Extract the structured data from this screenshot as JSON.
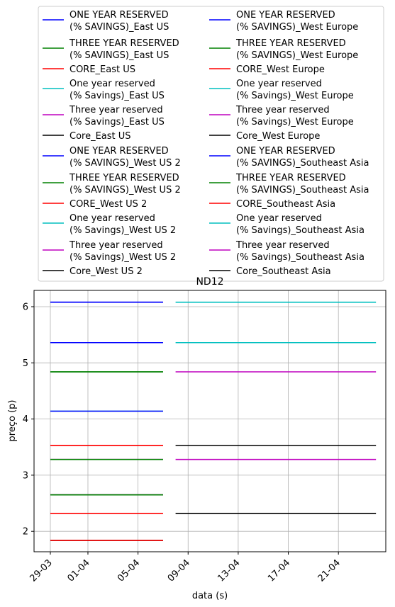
{
  "chart_data": {
    "type": "line",
    "title": "ND12",
    "xlabel": "data (s)",
    "ylabel": "preço (p)",
    "x_tick_labels": [
      "29-03",
      "01-04",
      "05-04",
      "09-04",
      "13-04",
      "17-04",
      "21-04"
    ],
    "y_tick_labels": [
      "2",
      "3",
      "4",
      "5",
      "6"
    ],
    "ylim": [
      1.62,
      6.3
    ],
    "grid": true,
    "legend_placement": "top, above plot, two columns",
    "series": [
      {
        "name": "ONE YEAR RESERVED\n(% SAVINGS)_East US",
        "color": "#0000ff",
        "x": [
          "29-03",
          "07-04"
        ],
        "y": [
          6.08,
          6.08
        ]
      },
      {
        "name": "THREE YEAR RESERVED\n(% SAVINGS)_East US",
        "color": "#008000",
        "x": [
          "29-03",
          "07-04"
        ],
        "y": [
          4.84,
          4.84
        ]
      },
      {
        "name": "CORE_East US",
        "color": "#ff0000",
        "x": [
          "29-03",
          "07-04"
        ],
        "y": [
          3.53,
          3.53
        ]
      },
      {
        "name": "One year reserved\n(% Savings)_East US",
        "color": "#00bfbf",
        "x": [
          "29-03",
          "07-04"
        ],
        "y": [
          5.36,
          5.36
        ]
      },
      {
        "name": "Three year reserved\n(% Savings)_East US",
        "color": "#bf00bf",
        "x": [
          "29-03",
          "07-04"
        ],
        "y": [
          3.28,
          3.28
        ]
      },
      {
        "name": "Core_East US",
        "color": "#000000",
        "x": [
          "29-03",
          "07-04"
        ],
        "y": [
          2.65,
          2.65
        ]
      },
      {
        "name": "ONE YEAR RESERVED\n(% SAVINGS)_West US 2",
        "color": "#0000ff",
        "x": [
          "29-03",
          "07-04"
        ],
        "y": [
          5.36,
          5.36
        ]
      },
      {
        "name": "THREE YEAR RESERVED\n(% SAVINGS)_West US 2",
        "color": "#008000",
        "x": [
          "29-03",
          "07-04"
        ],
        "y": [
          3.28,
          3.28
        ]
      },
      {
        "name": "CORE_West US 2",
        "color": "#ff0000",
        "x": [
          "29-03",
          "07-04"
        ],
        "y": [
          2.32,
          2.32
        ]
      },
      {
        "name": "One year reserved\n(% Savings)_West US 2",
        "color": "#00bfbf",
        "x": [
          "29-03",
          "07-04"
        ],
        "y": [
          4.14,
          4.14
        ]
      },
      {
        "name": "Three year reserved\n(% Savings)_West US 2",
        "color": "#bf00bf",
        "x": [
          "29-03",
          "07-04"
        ],
        "y": [
          2.65,
          2.65
        ]
      },
      {
        "name": "Core_West US 2",
        "color": "#000000",
        "x": [
          "29-03",
          "07-04"
        ],
        "y": [
          1.84,
          1.84
        ]
      },
      {
        "name": "ONE YEAR RESERVED\n(% SAVINGS)_West Europe",
        "color": "#0000ff",
        "x": [
          "29-03",
          "07-04"
        ],
        "y": [
          4.14,
          4.14
        ]
      },
      {
        "name": "THREE YEAR RESERVED\n(% SAVINGS)_West Europe",
        "color": "#008000",
        "x": [
          "29-03",
          "07-04"
        ],
        "y": [
          2.65,
          2.65
        ]
      },
      {
        "name": "CORE_West Europe",
        "color": "#ff0000",
        "x": [
          "29-03",
          "07-04"
        ],
        "y": [
          1.84,
          1.84
        ]
      },
      {
        "name": "One year reserved\n(% Savings)_West Europe",
        "color": "#00bfbf",
        "x": [
          "08-04",
          "24-04"
        ],
        "y": [
          6.08,
          6.08
        ]
      },
      {
        "name": "Three year reserved\n(% Savings)_West Europe",
        "color": "#bf00bf",
        "x": [
          "08-04",
          "24-04"
        ],
        "y": [
          4.84,
          4.84
        ]
      },
      {
        "name": "Core_West Europe",
        "color": "#000000",
        "x": [
          "08-04",
          "24-04"
        ],
        "y": [
          3.53,
          3.53
        ]
      },
      {
        "name": "ONE YEAR RESERVED\n(% SAVINGS)_Southeast Asia",
        "color": "#0000ff",
        "x": [
          "29-03",
          "07-04"
        ],
        "y": [
          6.08,
          6.08
        ]
      },
      {
        "name": "THREE YEAR RESERVED\n(% SAVINGS)_Southeast Asia",
        "color": "#008000",
        "x": [
          "29-03",
          "07-04"
        ],
        "y": [
          4.84,
          4.84
        ]
      },
      {
        "name": "CORE_Southeast Asia",
        "color": "#ff0000",
        "x": [
          "29-03",
          "07-04"
        ],
        "y": [
          3.53,
          3.53
        ]
      },
      {
        "name": "One year reserved\n(% Savings)_Southeast Asia",
        "color": "#00bfbf",
        "x": [
          "08-04",
          "24-04"
        ],
        "y": [
          5.36,
          5.36
        ]
      },
      {
        "name": "Three year reserved\n(% Savings)_Southeast Asia",
        "color": "#bf00bf",
        "x": [
          "08-04",
          "24-04"
        ],
        "y": [
          3.28,
          3.28
        ]
      },
      {
        "name": "Core_Southeast Asia",
        "color": "#000000",
        "x": [
          "08-04",
          "24-04"
        ],
        "y": [
          2.32,
          2.32
        ]
      }
    ]
  }
}
